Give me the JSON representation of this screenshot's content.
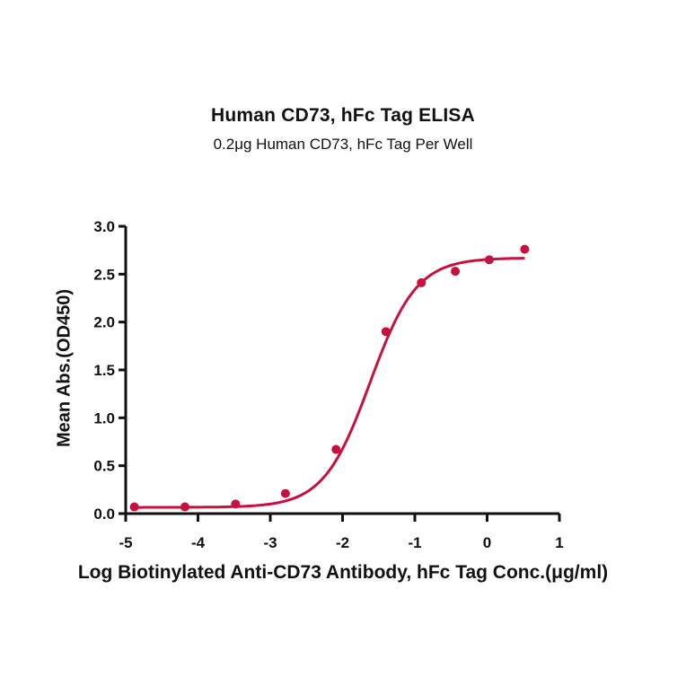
{
  "chart_data": {
    "type": "scatter",
    "title": "Human CD73, hFc Tag ELISA",
    "subtitle": "0.2μg Human CD73, hFc Tag Per Well",
    "xlabel": "Log Biotinylated Anti-CD73 Antibody, hFc Tag Conc.(μg/ml)",
    "ylabel": "Mean Abs.(OD450)",
    "xlim": [
      -5,
      1
    ],
    "ylim": [
      0,
      3.0
    ],
    "x_ticks": [
      "-5",
      "-4",
      "-3",
      "-2",
      "-1",
      "0",
      "1"
    ],
    "y_ticks": [
      "0.0",
      "0.5",
      "1.0",
      "1.5",
      "2.0",
      "2.5",
      "3.0"
    ],
    "grid": false,
    "legend": "none",
    "series": [
      {
        "name": "Mean Abs.(OD450)",
        "color": "#c8103e",
        "marker": "circle",
        "fit": "4PL sigmoidal curve",
        "x": [
          -4.88,
          -4.18,
          -3.48,
          -2.79,
          -2.09,
          -1.4,
          -0.91,
          -0.44,
          0.03,
          0.52
        ],
        "y": [
          0.07,
          0.07,
          0.1,
          0.21,
          0.67,
          1.9,
          2.41,
          2.53,
          2.65,
          2.76
        ]
      }
    ]
  }
}
